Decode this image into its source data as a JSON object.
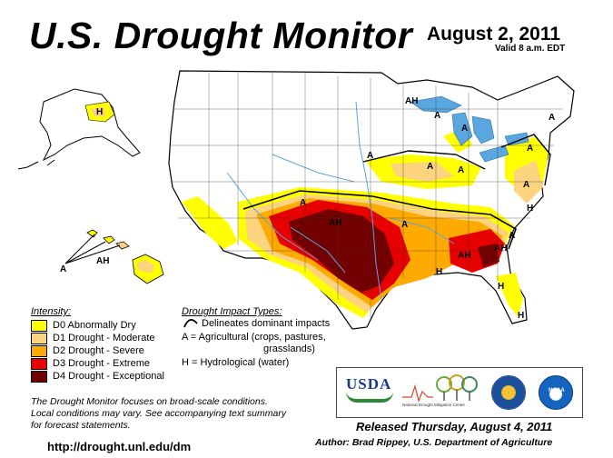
{
  "header": {
    "title": "U.S. Drought Monitor",
    "date": "August 2, 2011",
    "valid": "Valid 8 a.m. EDT"
  },
  "legend": {
    "title": "Intensity:",
    "items": [
      {
        "label": "D0 Abnormally Dry",
        "color": "#ffff00"
      },
      {
        "label": "D1 Drought - Moderate",
        "color": "#fcd37f"
      },
      {
        "label": "D2 Drought - Severe",
        "color": "#ffaa00"
      },
      {
        "label": "D3 Drought - Extreme",
        "color": "#e60000"
      },
      {
        "label": "D4 Drought - Exceptional",
        "color": "#730000"
      }
    ]
  },
  "impacts": {
    "title": "Drought Impact Types:",
    "line_label": "Delineates dominant impacts",
    "ag_line1": "A = Agricultural (crops, pastures,",
    "ag_line2": "grasslands)",
    "hydro": "H = Hydrological (water)"
  },
  "map_labels": {
    "A": "A",
    "H": "H",
    "AH": "AH"
  },
  "footer": {
    "note_line1": "The Drought Monitor focuses on broad-scale conditions.",
    "note_line2": "Local conditions may vary. See accompanying text summary",
    "note_line3": "for forecast statements.",
    "url": "http://drought.unl.edu/dm",
    "released": "Released Thursday, August 4, 2011",
    "author": "Author: Brad Rippey, U.S. Department of Agriculture"
  },
  "logos": {
    "usda": "USDA",
    "ndmc": "National Drought Mitigation Center",
    "noaa": "NOAA"
  },
  "colors": {
    "water": "#5aa7e0",
    "outline": "#000000",
    "state_lines": "#333333"
  }
}
